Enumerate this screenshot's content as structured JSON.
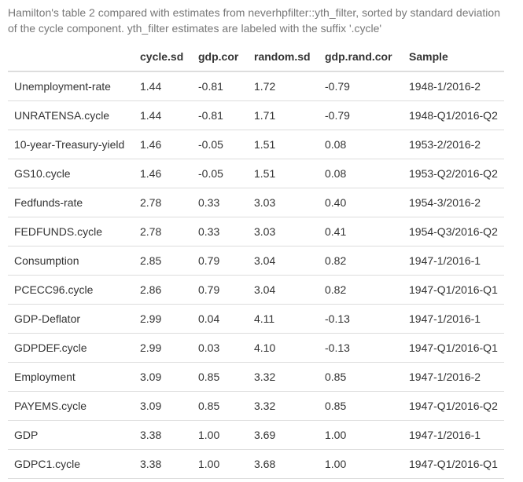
{
  "caption": "Hamilton's table 2 compared with estimates from neverhpfilter::yth_filter, sorted by standard deviation of the cycle component. yth_filter estimates are labeled with the suffix '.cycle'",
  "table": {
    "headers": [
      "",
      "cycle.sd",
      "gdp.cor",
      "random.sd",
      "gdp.rand.cor",
      "Sample"
    ],
    "rows": [
      [
        "Unemployment-rate",
        "1.44",
        "-0.81",
        "1.72",
        "-0.79",
        "1948-1/2016-2"
      ],
      [
        "UNRATENSA.cycle",
        "1.44",
        "-0.81",
        "1.71",
        "-0.79",
        "1948-Q1/2016-Q2"
      ],
      [
        "10-year-Treasury-yield",
        "1.46",
        "-0.05",
        "1.51",
        "0.08",
        "1953-2/2016-2"
      ],
      [
        "GS10.cycle",
        "1.46",
        "-0.05",
        "1.51",
        "0.08",
        "1953-Q2/2016-Q2"
      ],
      [
        "Fedfunds-rate",
        "2.78",
        "0.33",
        "3.03",
        "0.40",
        "1954-3/2016-2"
      ],
      [
        "FEDFUNDS.cycle",
        "2.78",
        "0.33",
        "3.03",
        "0.41",
        "1954-Q3/2016-Q2"
      ],
      [
        "Consumption",
        "2.85",
        "0.79",
        "3.04",
        "0.82",
        "1947-1/2016-1"
      ],
      [
        "PCECC96.cycle",
        "2.86",
        "0.79",
        "3.04",
        "0.82",
        "1947-Q1/2016-Q1"
      ],
      [
        "GDP-Deflator",
        "2.99",
        "0.04",
        "4.11",
        "-0.13",
        "1947-1/2016-1"
      ],
      [
        "GDPDEF.cycle",
        "2.99",
        "0.03",
        "4.10",
        "-0.13",
        "1947-Q1/2016-Q1"
      ],
      [
        "Employment",
        "3.09",
        "0.85",
        "3.32",
        "0.85",
        "1947-1/2016-2"
      ],
      [
        "PAYEMS.cycle",
        "3.09",
        "0.85",
        "3.32",
        "0.85",
        "1947-Q1/2016-Q2"
      ],
      [
        "GDP",
        "3.38",
        "1.00",
        "3.69",
        "1.00",
        "1947-1/2016-1"
      ],
      [
        "GDPC1.cycle",
        "3.38",
        "1.00",
        "3.68",
        "1.00",
        "1947-Q1/2016-Q1"
      ]
    ]
  }
}
